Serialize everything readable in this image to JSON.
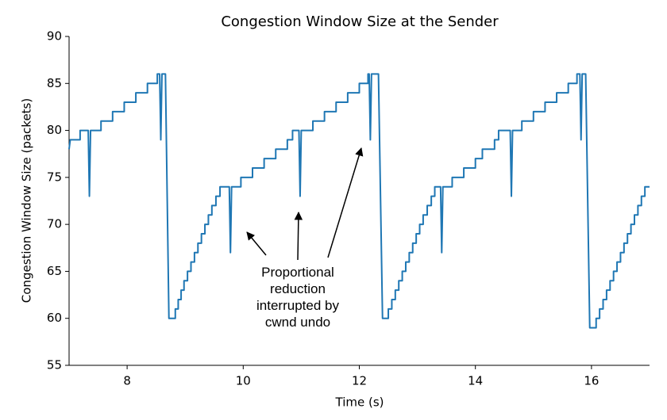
{
  "chart_data": {
    "type": "line",
    "title": "Congestion Window Size at the Sender",
    "xlabel": "Time (s)",
    "ylabel": "Congestion Window Size (packets)",
    "annotation": "Proportional\nreduction\ninterrupted by\ncwnd undo",
    "xlim": [
      7,
      17
    ],
    "xticks": [
      8,
      10,
      12,
      14,
      16
    ],
    "ylim": [
      55,
      90
    ],
    "yticks": [
      55,
      60,
      65,
      70,
      75,
      80,
      85,
      90
    ],
    "series": [
      {
        "name": "cwnd",
        "color": "#1f77b4",
        "x": [
          7.0,
          7.02,
          7.19,
          7.19,
          7.33,
          7.35,
          7.37,
          7.55,
          7.55,
          7.75,
          7.75,
          7.95,
          7.95,
          8.15,
          8.15,
          8.35,
          8.35,
          8.52,
          8.52,
          8.56,
          8.58,
          8.6,
          8.66,
          8.72,
          8.83,
          8.83,
          8.88,
          8.88,
          8.93,
          8.93,
          8.98,
          8.98,
          9.04,
          9.04,
          9.1,
          9.1,
          9.16,
          9.16,
          9.22,
          9.22,
          9.28,
          9.28,
          9.34,
          9.34,
          9.4,
          9.4,
          9.46,
          9.46,
          9.53,
          9.53,
          9.6,
          9.6,
          9.76,
          9.78,
          9.8,
          9.96,
          9.96,
          10.16,
          10.16,
          10.36,
          10.36,
          10.56,
          10.56,
          10.76,
          10.76,
          10.85,
          10.85,
          10.96,
          10.98,
          11.0,
          11.2,
          11.2,
          11.4,
          11.4,
          11.6,
          11.6,
          11.8,
          11.8,
          12.0,
          12.0,
          12.15,
          12.15,
          12.17,
          12.19,
          12.21,
          12.33,
          12.4,
          12.5,
          12.5,
          12.56,
          12.56,
          12.62,
          12.62,
          12.68,
          12.68,
          12.74,
          12.74,
          12.8,
          12.8,
          12.86,
          12.86,
          12.92,
          12.92,
          12.98,
          12.98,
          13.04,
          13.04,
          13.1,
          13.1,
          13.17,
          13.17,
          13.24,
          13.24,
          13.3,
          13.3,
          13.4,
          13.42,
          13.44,
          13.6,
          13.6,
          13.8,
          13.8,
          14.0,
          14.0,
          14.12,
          14.12,
          14.33,
          14.33,
          14.4,
          14.4,
          14.6,
          14.62,
          14.64,
          14.8,
          14.8,
          15.0,
          15.0,
          15.2,
          15.2,
          15.4,
          15.4,
          15.6,
          15.6,
          15.75,
          15.75,
          15.8,
          15.82,
          15.84,
          15.9,
          15.97,
          16.08,
          16.08,
          16.14,
          16.14,
          16.2,
          16.2,
          16.26,
          16.26,
          16.32,
          16.32,
          16.38,
          16.38,
          16.44,
          16.44,
          16.5,
          16.5,
          16.56,
          16.56,
          16.62,
          16.62,
          16.68,
          16.68,
          16.74,
          16.74,
          16.8,
          16.8,
          16.86,
          16.86,
          16.92,
          16.92,
          17.0
        ],
        "values": [
          78,
          79,
          79,
          80,
          80,
          73,
          80,
          80,
          81,
          81,
          82,
          82,
          83,
          83,
          84,
          84,
          85,
          85,
          86,
          86,
          79,
          86,
          86,
          60,
          60,
          61,
          61,
          62,
          62,
          63,
          63,
          64,
          64,
          65,
          65,
          66,
          66,
          67,
          67,
          68,
          68,
          69,
          69,
          70,
          70,
          71,
          71,
          72,
          72,
          73,
          73,
          74,
          74,
          67,
          74,
          74,
          75,
          75,
          76,
          76,
          77,
          77,
          78,
          78,
          79,
          79,
          80,
          80,
          73,
          80,
          80,
          81,
          81,
          82,
          82,
          83,
          83,
          84,
          84,
          85,
          85,
          86,
          86,
          79,
          86,
          86,
          60,
          60,
          61,
          61,
          62,
          62,
          63,
          63,
          64,
          64,
          65,
          65,
          66,
          66,
          67,
          67,
          68,
          68,
          69,
          69,
          70,
          70,
          71,
          71,
          72,
          72,
          73,
          73,
          74,
          74,
          67,
          74,
          74,
          75,
          75,
          76,
          76,
          77,
          77,
          78,
          78,
          79,
          79,
          80,
          80,
          73,
          80,
          80,
          81,
          81,
          82,
          82,
          83,
          83,
          84,
          84,
          85,
          85,
          86,
          86,
          79,
          86,
          86,
          59,
          59,
          60,
          60,
          61,
          61,
          62,
          62,
          63,
          63,
          64,
          64,
          65,
          65,
          66,
          66,
          67,
          67,
          68,
          68,
          69,
          69,
          70,
          70,
          71,
          71,
          72,
          72,
          73,
          73,
          74,
          74
        ]
      }
    ]
  }
}
